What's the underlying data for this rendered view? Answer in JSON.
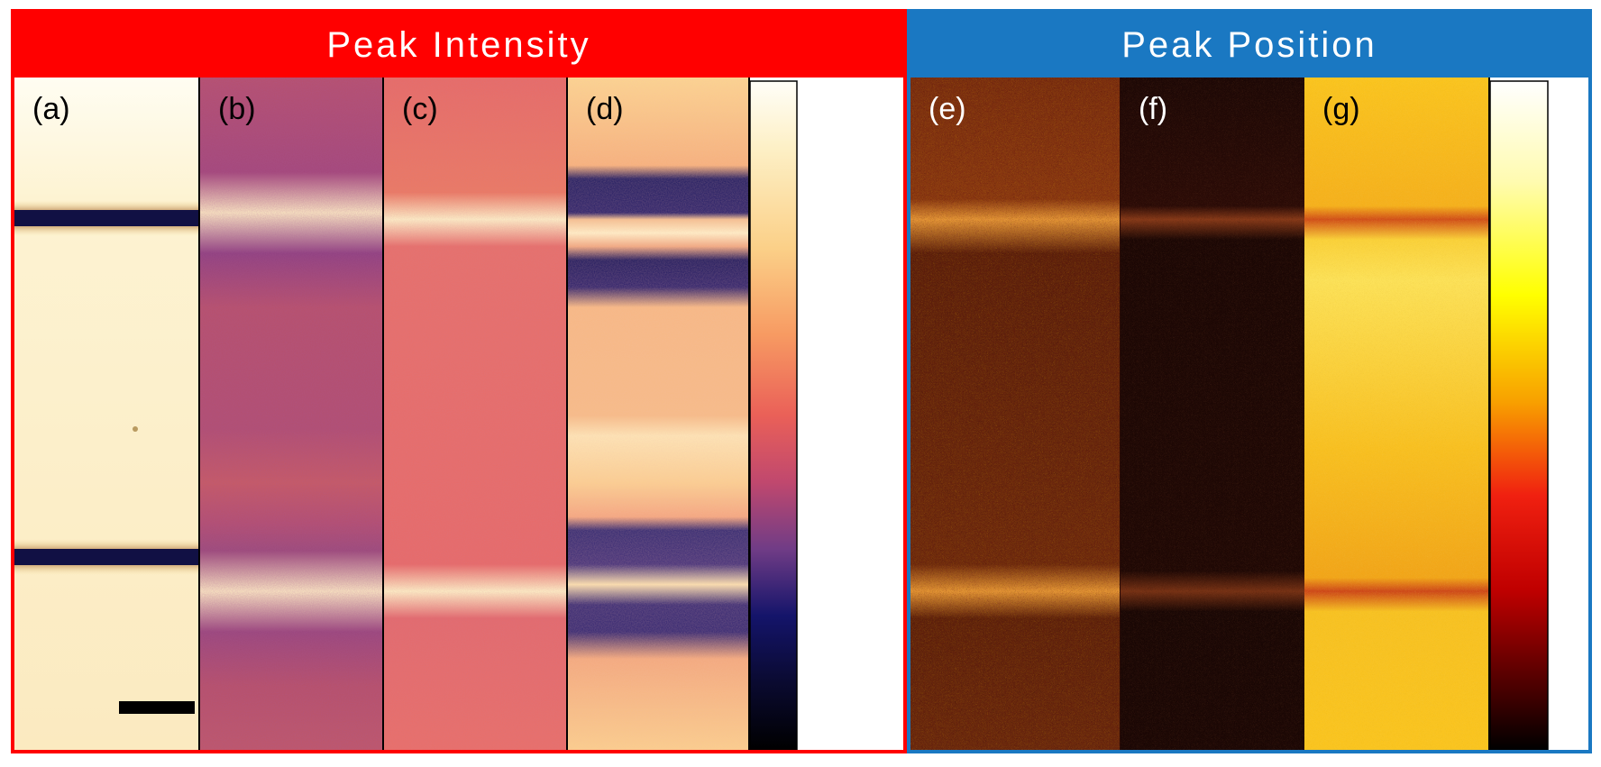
{
  "figure": {
    "left_group": {
      "title": "Peak Intensity",
      "accent_color": "#ff0000",
      "panels": [
        {
          "label": "(a)",
          "label_color": "#000000",
          "colormap": "intensity"
        },
        {
          "label": "(b)",
          "label_color": "#000000",
          "colormap": "intensity"
        },
        {
          "label": "(c)",
          "label_color": "#000000",
          "colormap": "intensity"
        },
        {
          "label": "(d)",
          "label_color": "#000000",
          "colormap": "intensity"
        }
      ],
      "colorbar": "intensity-colorbar"
    },
    "right_group": {
      "title": "Peak Position",
      "accent_color": "#1a78c2",
      "panels": [
        {
          "label": "(e)",
          "label_color": "#ffffff",
          "colormap": "position"
        },
        {
          "label": "(f)",
          "label_color": "#ffffff",
          "colormap": "position"
        },
        {
          "label": "(g)",
          "label_color": "#000000",
          "colormap": "position"
        }
      ],
      "colorbar": "position-colorbar"
    },
    "colors": {
      "panel_a_base": "#fdf3d2",
      "panel_b_base": "#b9506a",
      "panel_c_base": "#e86a66",
      "panel_d_base": "#fcd28c",
      "panel_e_base": "#7a2e10",
      "panel_f_base": "#1a0604",
      "panel_g_base": "#fbc51e",
      "band_dark": "#101050",
      "band_light": "#fff0c0"
    }
  }
}
